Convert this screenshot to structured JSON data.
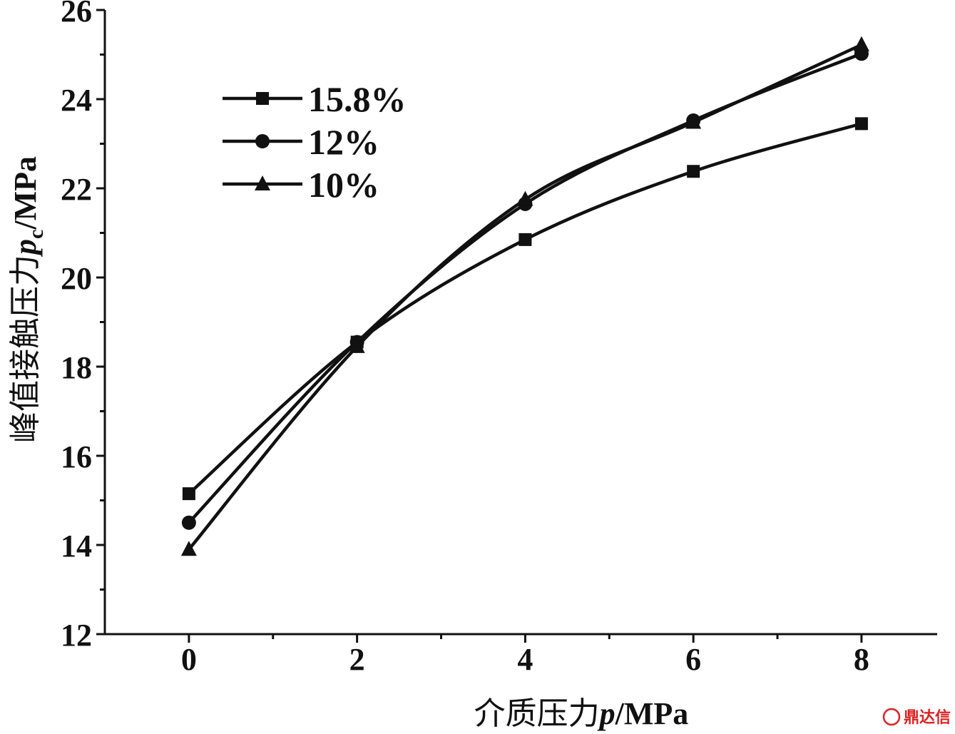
{
  "chart_data": {
    "type": "line",
    "x": [
      0,
      2,
      4,
      6,
      8
    ],
    "series": [
      {
        "name": "15.8%",
        "marker": "square",
        "values": [
          15.15,
          18.55,
          20.85,
          22.38,
          23.45
        ]
      },
      {
        "name": "12%",
        "marker": "circle",
        "values": [
          14.5,
          18.55,
          21.65,
          23.52,
          25.02
        ]
      },
      {
        "name": "10%",
        "marker": "triangle",
        "values": [
          13.9,
          18.45,
          21.75,
          23.48,
          25.22
        ]
      }
    ],
    "xlim": [
      -1,
      8.9
    ],
    "ylim": [
      12,
      26
    ],
    "xticks": [
      0,
      2,
      4,
      6,
      8
    ],
    "yticks": [
      12,
      14,
      16,
      18,
      20,
      22,
      24,
      26
    ],
    "xlabel": {
      "main": "介质压力",
      "var": "p",
      "unit": "/MPa"
    },
    "ylabel": {
      "main": "峰值接触压力",
      "var": "p",
      "sub": "c",
      "unit": "/MPa"
    },
    "legend_position": "top-left",
    "grid": false,
    "line_color": "#111111"
  },
  "watermark": "鼎达信"
}
